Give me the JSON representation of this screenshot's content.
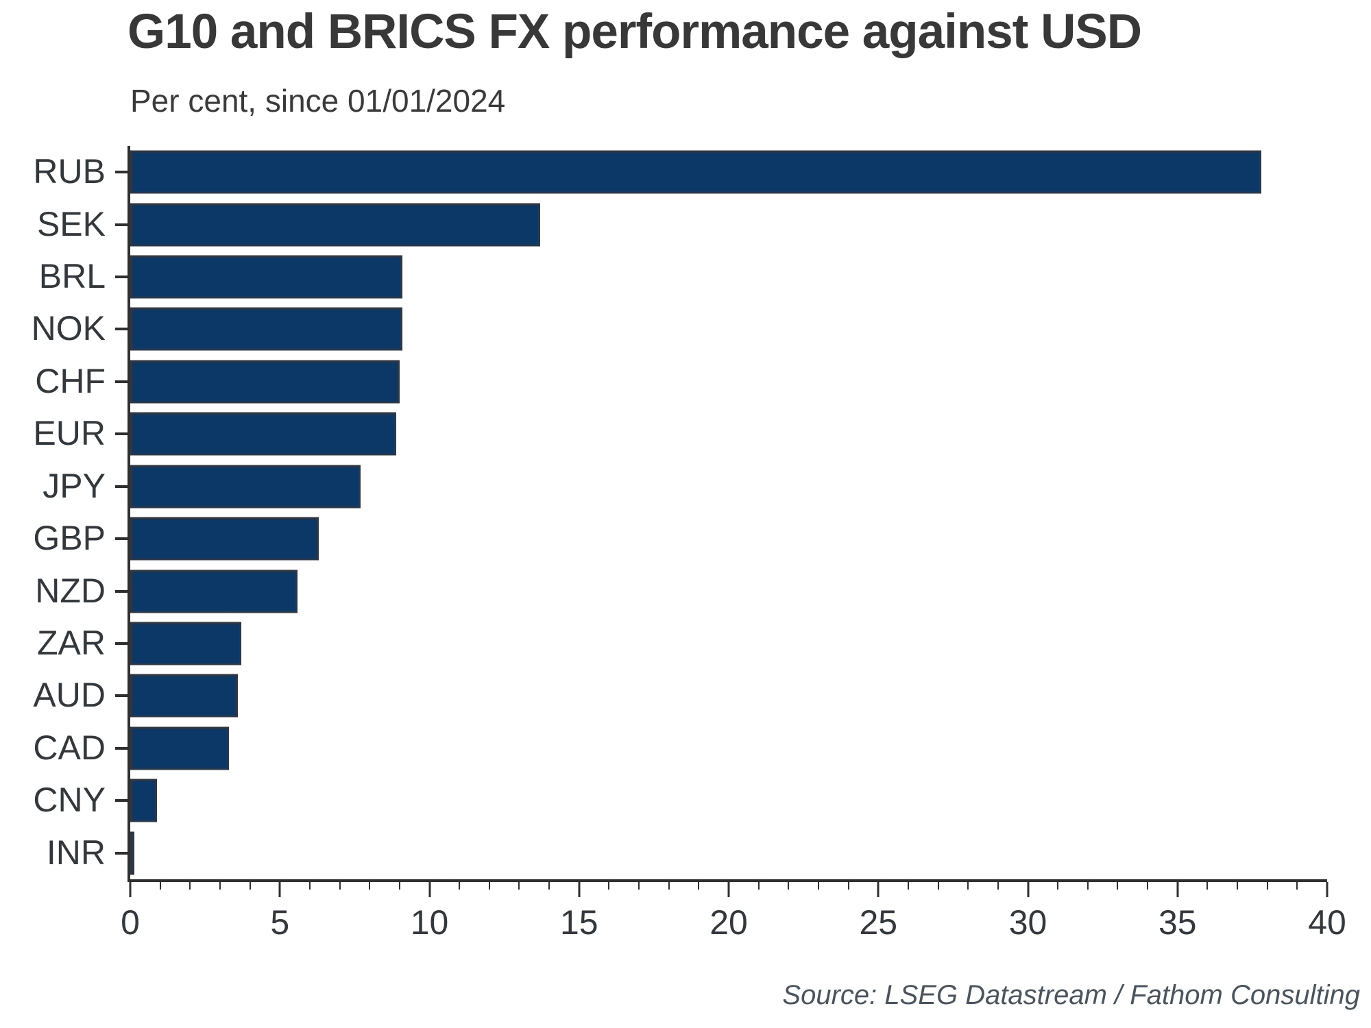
{
  "header": {
    "title": "G10 and BRICS FX performance against USD",
    "subtitle": "Per cent, since 01/01/2024"
  },
  "footer": {
    "source": "Source: LSEG Datastream / Fathom Consulting"
  },
  "colors": {
    "bar_fill": "#0b3866",
    "bar_edge": "#2d3844",
    "axis": "#2f2f2f",
    "text": "#33383d",
    "title_text": "#383838",
    "source_text": "#4a545c",
    "background": "#ffffff"
  },
  "chart_data": {
    "type": "bar",
    "orientation": "horizontal",
    "title": "G10 and BRICS FX performance against USD",
    "subtitle": "Per cent, since 01/01/2024",
    "xlabel": "",
    "ylabel": "",
    "categories": [
      "RUB",
      "SEK",
      "BRL",
      "NOK",
      "CHF",
      "EUR",
      "JPY",
      "GBP",
      "NZD",
      "ZAR",
      "AUD",
      "CAD",
      "CNY",
      "INR"
    ],
    "values": [
      37.8,
      13.7,
      9.1,
      9.1,
      9.0,
      8.9,
      7.7,
      6.3,
      5.6,
      3.7,
      3.6,
      3.3,
      0.9,
      0.1
    ],
    "xlim": [
      0,
      40
    ],
    "x_major_step": 5,
    "x_minor_step": 1,
    "x_tick_labels": [
      "0",
      "5",
      "10",
      "15",
      "20",
      "25",
      "30",
      "35",
      "40"
    ],
    "grid": false,
    "legend": "none",
    "source": "Source: LSEG Datastream / Fathom Consulting"
  }
}
